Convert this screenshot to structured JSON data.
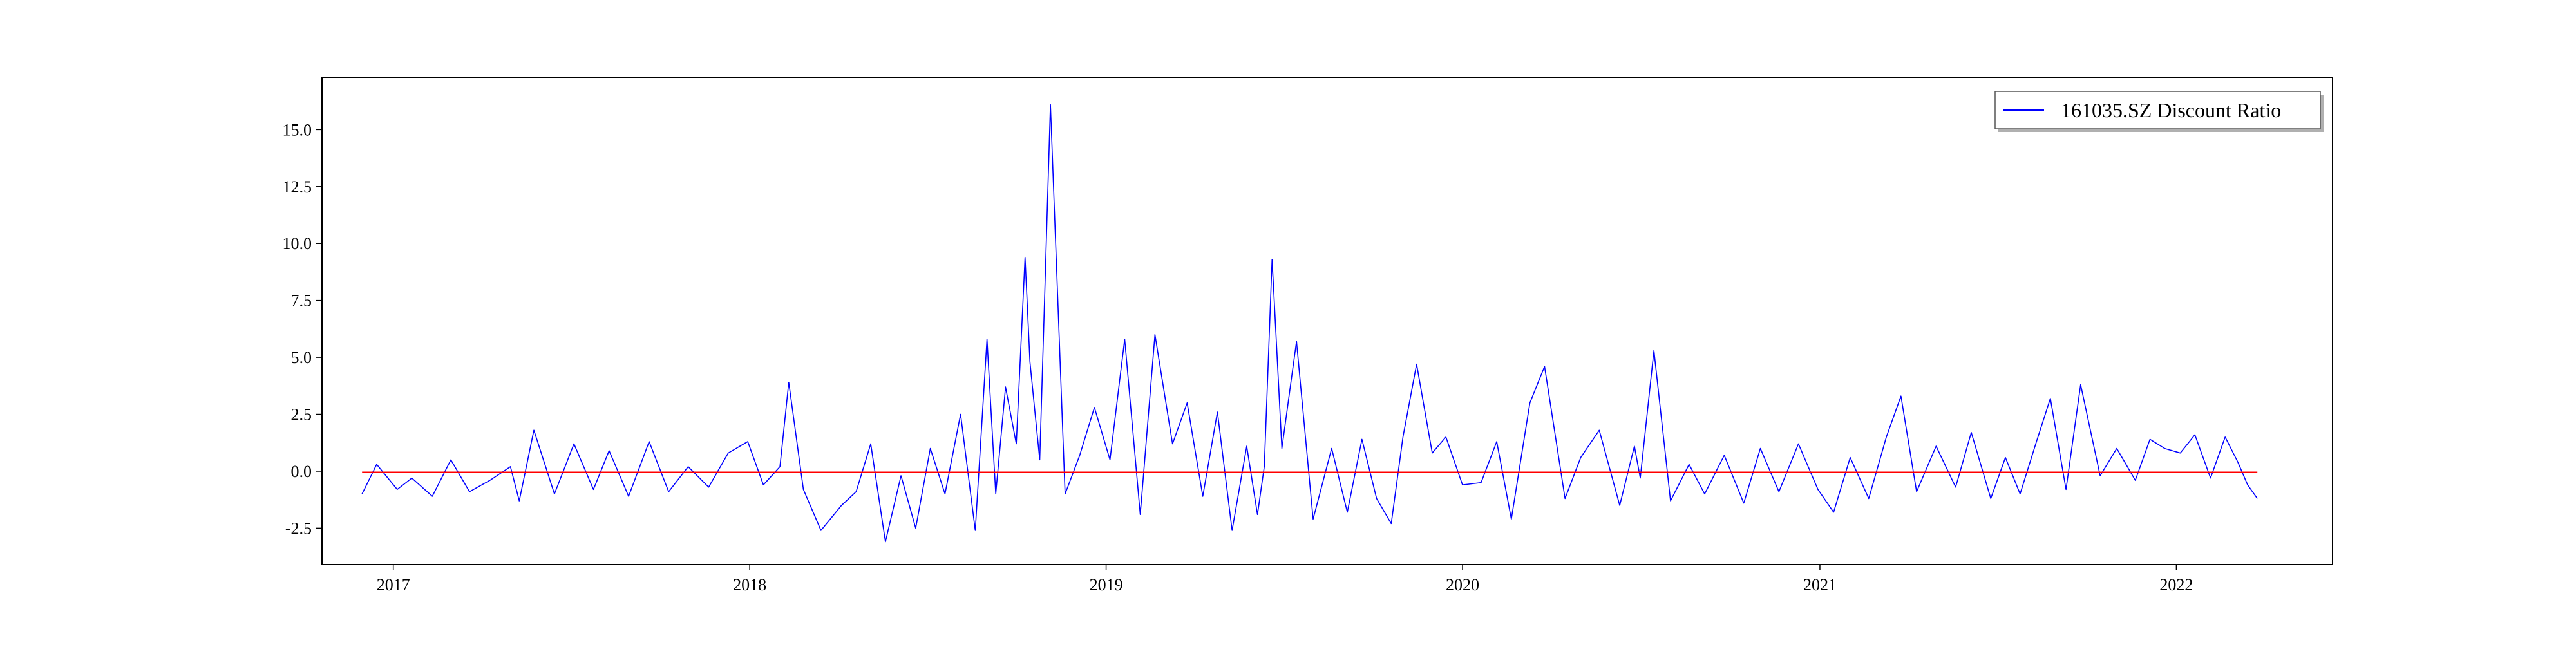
{
  "chart_data": {
    "type": "line",
    "title": "",
    "xlabel": "",
    "ylabel": "",
    "xlim": [
      "2016-10-20",
      "2022-06-10"
    ],
    "ylim": [
      -4.1,
      17.3
    ],
    "grid": false,
    "legend_placement": "top-right",
    "x_ticks": [
      "2017",
      "2018",
      "2019",
      "2020",
      "2021",
      "2022"
    ],
    "y_ticks": [
      "-2.5",
      "0.0",
      "2.5",
      "5.0",
      "7.5",
      "10.0",
      "12.5",
      "15.0"
    ],
    "colors": {
      "series": "#0000ff",
      "baseline": "#ff0000",
      "axes": "#000000"
    },
    "series": [
      {
        "name": "161035.SZ Discount Ratio",
        "x": [
          "2016-11-30",
          "2016-12-15",
          "2017-01-05",
          "2017-01-20",
          "2017-02-10",
          "2017-03-01",
          "2017-03-20",
          "2017-04-10",
          "2017-05-01",
          "2017-05-10",
          "2017-05-25",
          "2017-06-15",
          "2017-07-05",
          "2017-07-25",
          "2017-08-10",
          "2017-08-30",
          "2017-09-20",
          "2017-10-10",
          "2017-10-30",
          "2017-11-20",
          "2017-12-10",
          "2017-12-30",
          "2018-01-15",
          "2018-02-01",
          "2018-02-10",
          "2018-02-25",
          "2018-03-15",
          "2018-04-05",
          "2018-04-20",
          "2018-05-05",
          "2018-05-20",
          "2018-06-05",
          "2018-06-20",
          "2018-07-05",
          "2018-07-20",
          "2018-08-05",
          "2018-08-20",
          "2018-09-01",
          "2018-09-10",
          "2018-09-20",
          "2018-10-01",
          "2018-10-10",
          "2018-10-15",
          "2018-10-25",
          "2018-11-05",
          "2018-11-20",
          "2018-12-05",
          "2018-12-20",
          "2019-01-05",
          "2019-01-20",
          "2019-02-05",
          "2019-02-20",
          "2019-03-10",
          "2019-03-25",
          "2019-04-10",
          "2019-04-25",
          "2019-05-10",
          "2019-05-25",
          "2019-06-05",
          "2019-06-12",
          "2019-06-20",
          "2019-06-30",
          "2019-07-15",
          "2019-08-01",
          "2019-08-20",
          "2019-09-05",
          "2019-09-20",
          "2019-10-05",
          "2019-10-20",
          "2019-11-01",
          "2019-11-15",
          "2019-12-01",
          "2019-12-15",
          "2020-01-01",
          "2020-01-20",
          "2020-02-05",
          "2020-02-20",
          "2020-03-10",
          "2020-03-25",
          "2020-04-15",
          "2020-05-01",
          "2020-05-20",
          "2020-06-10",
          "2020-06-25",
          "2020-07-01",
          "2020-07-15",
          "2020-08-01",
          "2020-08-20",
          "2020-09-05",
          "2020-09-25",
          "2020-10-15",
          "2020-11-01",
          "2020-11-20",
          "2020-12-10",
          "2020-12-30",
          "2021-01-15",
          "2021-02-01",
          "2021-02-20",
          "2021-03-10",
          "2021-03-25",
          "2021-04-10",
          "2021-04-30",
          "2021-05-20",
          "2021-06-05",
          "2021-06-25",
          "2021-07-10",
          "2021-07-25",
          "2021-08-10",
          "2021-08-25",
          "2021-09-10",
          "2021-09-25",
          "2021-10-15",
          "2021-11-01",
          "2021-11-20",
          "2021-12-05",
          "2021-12-20",
          "2022-01-05",
          "2022-01-20",
          "2022-02-05",
          "2022-02-20",
          "2022-03-05",
          "2022-03-15",
          "2022-03-25"
        ],
        "y": [
          -1.0,
          0.3,
          -0.8,
          -0.3,
          -1.1,
          0.5,
          -0.9,
          -0.4,
          0.2,
          -1.3,
          1.8,
          -1.0,
          1.2,
          -0.8,
          0.9,
          -1.1,
          1.3,
          -0.9,
          0.2,
          -0.7,
          0.8,
          1.3,
          -0.6,
          0.2,
          3.9,
          -0.8,
          -2.6,
          -1.5,
          -0.9,
          1.2,
          -3.1,
          -0.2,
          -2.5,
          1.0,
          -1.0,
          2.5,
          -2.6,
          5.8,
          -1.0,
          3.7,
          1.2,
          9.4,
          4.8,
          0.5,
          16.1,
          -1.0,
          0.7,
          2.8,
          0.5,
          5.8,
          -1.9,
          6.0,
          1.2,
          3.0,
          -1.1,
          2.6,
          -2.6,
          1.1,
          -1.9,
          0.2,
          9.3,
          1.0,
          5.7,
          -2.1,
          1.0,
          -1.8,
          1.4,
          -1.2,
          -2.3,
          1.5,
          4.7,
          0.8,
          1.5,
          -0.6,
          -0.5,
          1.3,
          -2.1,
          3.0,
          4.6,
          -1.2,
          0.6,
          1.8,
          -1.5,
          1.1,
          -0.3,
          5.3,
          -1.3,
          0.3,
          -1.0,
          0.7,
          -1.4,
          1.0,
          -0.9,
          1.2,
          -0.8,
          -1.8,
          0.6,
          -1.2,
          1.5,
          3.3,
          -0.9,
          1.1,
          -0.7,
          1.7,
          -1.2,
          0.6,
          -1.0,
          1.2,
          3.2,
          -0.8,
          3.8,
          -0.2,
          1.0,
          -0.4,
          1.4,
          1.0,
          0.8,
          1.6,
          -0.3,
          1.5,
          0.4,
          -0.6,
          -1.2
        ]
      },
      {
        "name": "",
        "x": [
          "2016-11-30",
          "2022-03-25"
        ],
        "y": [
          -0.05,
          -0.05
        ]
      }
    ]
  }
}
